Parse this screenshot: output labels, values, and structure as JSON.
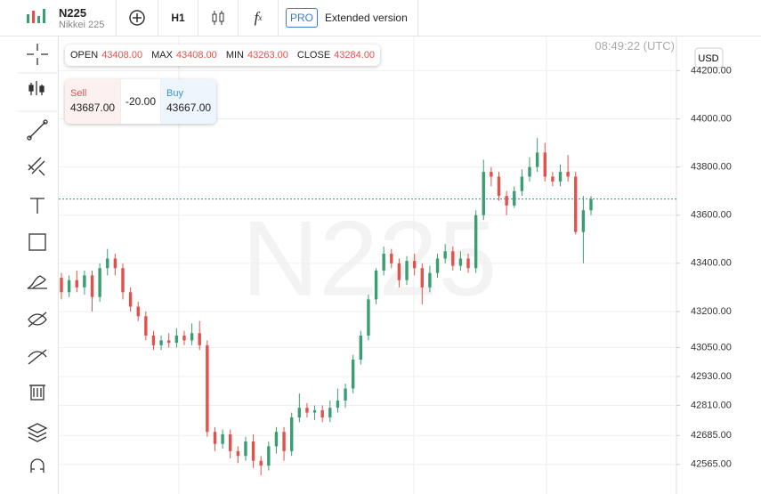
{
  "toolbar": {
    "symbol": "N225",
    "name": "Nikkei 225",
    "timeframe": "H1",
    "pro": "PRO",
    "extended": "Extended version"
  },
  "clock": "08:49:22 (UTC)",
  "currency": "USD",
  "watermark": "N225",
  "ohlc": [
    {
      "label": "OPEN",
      "value": "43408.00"
    },
    {
      "label": "MAX",
      "value": "43408.00"
    },
    {
      "label": "MIN",
      "value": "43263.00"
    },
    {
      "label": "CLOSE",
      "value": "43284.00"
    }
  ],
  "quote": {
    "sell_label": "Sell",
    "sell": "43687.00",
    "spread": "-20.00",
    "buy_label": "Buy",
    "buy": "43667.00"
  },
  "chart_data": {
    "type": "candlestick",
    "ylim": [
      42442,
      44342
    ],
    "yticks": [
      {
        "value": 44200,
        "label": "44200.00"
      },
      {
        "value": 44000,
        "label": "44000.00"
      },
      {
        "value": 43800,
        "label": "43800.00"
      },
      {
        "value": 43600,
        "label": "43600.00"
      },
      {
        "value": 43400,
        "label": "43400.00"
      },
      {
        "value": 43200,
        "label": "43200.00"
      },
      {
        "value": 43050,
        "label": "43050.00"
      },
      {
        "value": 42930,
        "label": "42930.00"
      },
      {
        "value": 42810,
        "label": "42810.00"
      },
      {
        "value": 42685,
        "label": "42685.00"
      },
      {
        "value": 42565,
        "label": "42565.00"
      }
    ],
    "grid": true,
    "up_color": "#3a9e72",
    "down_color": "#e2514c",
    "open": [
      43340,
      43280,
      43330,
      43300,
      43350,
      43260,
      43380,
      43420,
      43380,
      43280,
      43220,
      43180,
      43100,
      43060,
      43080,
      43070,
      43100,
      43080,
      43110,
      43060,
      42700,
      42650,
      42690,
      42620,
      42600,
      42660,
      42580,
      42560,
      42640,
      42700,
      42620,
      42760,
      42800,
      42780,
      42790,
      42760,
      42800,
      42830,
      42880,
      43000,
      43100,
      43250,
      43370,
      43440,
      43400,
      43330,
      43410,
      43380,
      43300,
      43360,
      43420,
      43450,
      43390,
      43420,
      43380,
      43600,
      43780,
      43760,
      43680,
      43640,
      43700,
      43760,
      43800,
      43860,
      43760,
      43740,
      43780,
      43760,
      43530,
      43620
    ],
    "high": [
      43360,
      43350,
      43370,
      43370,
      43370,
      43400,
      43460,
      43440,
      43400,
      43300,
      43240,
      43200,
      43120,
      43100,
      43110,
      43130,
      43120,
      43150,
      43160,
      43080,
      42720,
      42710,
      42710,
      42640,
      42680,
      42690,
      42600,
      42660,
      42720,
      42720,
      42780,
      42860,
      42820,
      42810,
      42810,
      42830,
      42880,
      42900,
      43020,
      43120,
      43270,
      43380,
      43470,
      43460,
      43420,
      43430,
      43440,
      43400,
      43390,
      43440,
      43480,
      43470,
      43450,
      43440,
      43620,
      43830,
      43800,
      43780,
      43700,
      43720,
      43790,
      43840,
      43920,
      43900,
      43780,
      43810,
      43850,
      43780,
      43680,
      43680
    ],
    "low": [
      43250,
      43260,
      43280,
      43270,
      43200,
      43240,
      43350,
      43350,
      43250,
      43200,
      43160,
      43080,
      43040,
      43040,
      43050,
      43050,
      43060,
      43060,
      43040,
      42680,
      42620,
      42630,
      42590,
      42570,
      42580,
      42550,
      42520,
      42540,
      42610,
      42580,
      42600,
      42740,
      42760,
      42750,
      42740,
      42740,
      42780,
      42800,
      42860,
      42980,
      43080,
      43230,
      43350,
      43380,
      43300,
      43310,
      43350,
      43230,
      43280,
      43340,
      43400,
      43370,
      43370,
      43360,
      43360,
      43580,
      43720,
      43660,
      43600,
      43630,
      43680,
      43740,
      43780,
      43740,
      43720,
      43720,
      43740,
      43520,
      43400,
      43600
    ],
    "close": [
      43280,
      43330,
      43300,
      43350,
      43260,
      43380,
      43420,
      43380,
      43280,
      43220,
      43180,
      43100,
      43060,
      43080,
      43070,
      43100,
      43080,
      43110,
      43060,
      42700,
      42650,
      42690,
      42620,
      42600,
      42660,
      42580,
      42560,
      42640,
      42700,
      42620,
      42760,
      42800,
      42780,
      42790,
      42760,
      42800,
      42830,
      42880,
      43000,
      43100,
      43250,
      43370,
      43440,
      43400,
      43330,
      43410,
      43380,
      43300,
      43360,
      43420,
      43450,
      43390,
      43420,
      43380,
      43600,
      43780,
      43760,
      43680,
      43640,
      43700,
      43760,
      43800,
      43860,
      43760,
      43740,
      43780,
      43760,
      43530,
      43620,
      43667
    ]
  }
}
